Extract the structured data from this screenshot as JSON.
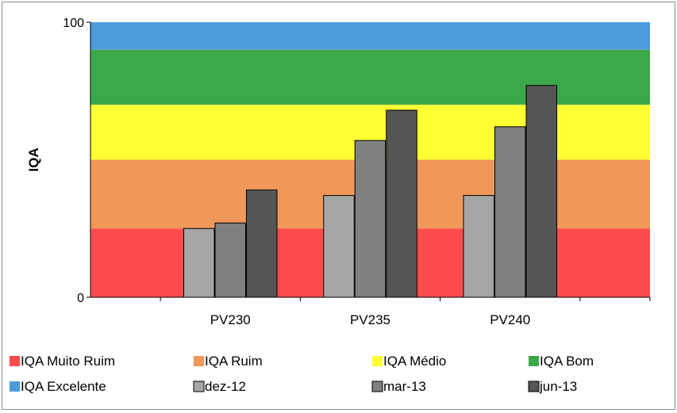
{
  "chart_data": {
    "type": "bar",
    "ylabel": "IQA",
    "ylim": [
      0,
      100
    ],
    "y_ticks": [
      "0",
      "100"
    ],
    "categories": [
      "PV230",
      "PV235",
      "PV240"
    ],
    "series": [
      {
        "name": "dez-12",
        "values": [
          25,
          37,
          37
        ],
        "color": "#a6a6a6"
      },
      {
        "name": "mar-13",
        "values": [
          27,
          57,
          62
        ],
        "color": "#808080"
      },
      {
        "name": "jun-13",
        "values": [
          39,
          68,
          77
        ],
        "color": "#555555"
      }
    ],
    "bands": [
      {
        "name": "IQA Muito Ruim",
        "from": 0,
        "to": 25,
        "color": "#ff4b4b"
      },
      {
        "name": "IQA Ruim",
        "from": 25,
        "to": 50,
        "color": "#f0975a"
      },
      {
        "name": "IQA Médio",
        "from": 50,
        "to": 70,
        "color": "#ffff33"
      },
      {
        "name": "IQA Bom",
        "from": 70,
        "to": 90,
        "color": "#3ba84a"
      },
      {
        "name": "IQA Excelente",
        "from": 90,
        "to": 100,
        "color": "#4d9bd9"
      }
    ],
    "legend": {
      "position": "bottom",
      "entries": [
        "IQA Muito Ruim",
        "IQA Ruim",
        "IQA Médio",
        "IQA Bom",
        "IQA Excelente",
        "dez-12",
        "mar-13",
        "jun-13"
      ]
    }
  }
}
